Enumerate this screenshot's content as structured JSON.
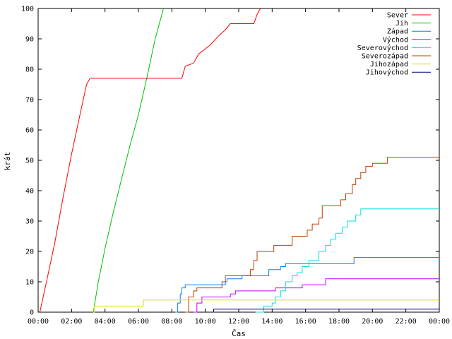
{
  "chart_data": {
    "type": "line",
    "xlabel": "Čas",
    "ylabel": "krát",
    "xlim": [
      0,
      24
    ],
    "ylim": [
      0,
      100
    ],
    "x_ticks": [
      {
        "v": 0,
        "label": "00:00"
      },
      {
        "v": 2,
        "label": "02:00"
      },
      {
        "v": 4,
        "label": "04:00"
      },
      {
        "v": 6,
        "label": "06:00"
      },
      {
        "v": 8,
        "label": "08:00"
      },
      {
        "v": 10,
        "label": "10:00"
      },
      {
        "v": 12,
        "label": "12:00"
      },
      {
        "v": 14,
        "label": "14:00"
      },
      {
        "v": 16,
        "label": "16:00"
      },
      {
        "v": 18,
        "label": "18:00"
      },
      {
        "v": 20,
        "label": "20:00"
      },
      {
        "v": 22,
        "label": "22:00"
      },
      {
        "v": 24,
        "label": "00:00"
      }
    ],
    "y_ticks": [
      0,
      10,
      20,
      30,
      40,
      50,
      60,
      70,
      80,
      90,
      100
    ],
    "legend_position": "top-right",
    "grid": false,
    "series": [
      {
        "name": "Sever",
        "color": "#ff0000",
        "step": false,
        "points": [
          [
            0.1,
            0
          ],
          [
            0.5,
            10
          ],
          [
            1,
            23
          ],
          [
            1.5,
            38
          ],
          [
            2,
            52
          ],
          [
            2.5,
            65
          ],
          [
            2.9,
            75
          ],
          [
            3.1,
            77
          ],
          [
            8.6,
            77
          ],
          [
            8.8,
            81
          ],
          [
            9.3,
            82
          ],
          [
            9.6,
            85
          ],
          [
            10.3,
            88
          ],
          [
            10.8,
            91
          ],
          [
            11.2,
            93
          ],
          [
            11.5,
            95
          ],
          [
            12.9,
            95
          ],
          [
            13.1,
            98
          ],
          [
            13.3,
            100
          ]
        ]
      },
      {
        "name": "Jih",
        "color": "#00c000",
        "step": false,
        "points": [
          [
            3.3,
            0
          ],
          [
            3.6,
            10
          ],
          [
            4.0,
            21
          ],
          [
            4.5,
            33
          ],
          [
            5.0,
            44
          ],
          [
            5.5,
            55
          ],
          [
            6.0,
            65
          ],
          [
            6.5,
            77
          ],
          [
            7.0,
            90
          ],
          [
            7.5,
            100
          ]
        ]
      },
      {
        "name": "Západ",
        "color": "#0080ff",
        "step": true,
        "points": [
          [
            8.2,
            0
          ],
          [
            8.35,
            3
          ],
          [
            8.5,
            6
          ],
          [
            8.6,
            8
          ],
          [
            8.8,
            9
          ],
          [
            11.1,
            9
          ],
          [
            11.2,
            10
          ],
          [
            11.3,
            11
          ],
          [
            12.2,
            12
          ],
          [
            13.6,
            12
          ],
          [
            13.8,
            14
          ],
          [
            14.5,
            15
          ],
          [
            14.8,
            16
          ],
          [
            18.8,
            16
          ],
          [
            18.9,
            18
          ],
          [
            24,
            18
          ]
        ]
      },
      {
        "name": "Východ",
        "color": "#c000ff",
        "step": true,
        "points": [
          [
            9.3,
            0
          ],
          [
            9.5,
            3
          ],
          [
            9.8,
            5
          ],
          [
            11.2,
            5
          ],
          [
            11.5,
            6
          ],
          [
            11.8,
            7
          ],
          [
            13.8,
            7
          ],
          [
            14.2,
            8
          ],
          [
            15.5,
            8
          ],
          [
            15.8,
            9
          ],
          [
            17.0,
            9
          ],
          [
            17.2,
            11
          ],
          [
            24,
            11
          ]
        ]
      },
      {
        "name": "Severovýchod",
        "color": "#00e0e0",
        "step": true,
        "points": [
          [
            13.0,
            0
          ],
          [
            13.5,
            2
          ],
          [
            14.0,
            3
          ],
          [
            14.2,
            5
          ],
          [
            14.5,
            7
          ],
          [
            14.8,
            10
          ],
          [
            15.2,
            12
          ],
          [
            15.5,
            13
          ],
          [
            15.8,
            15
          ],
          [
            16.2,
            17
          ],
          [
            16.8,
            20
          ],
          [
            17.2,
            22
          ],
          [
            17.5,
            24
          ],
          [
            17.8,
            26
          ],
          [
            18.2,
            28
          ],
          [
            18.5,
            30
          ],
          [
            19.0,
            32
          ],
          [
            19.3,
            34
          ],
          [
            24,
            34
          ]
        ]
      },
      {
        "name": "Severozápad",
        "color": "#c04000",
        "step": true,
        "points": [
          [
            8.8,
            0
          ],
          [
            9.0,
            5
          ],
          [
            9.3,
            7
          ],
          [
            9.5,
            8
          ],
          [
            10.9,
            8
          ],
          [
            11.0,
            10
          ],
          [
            11.2,
            12
          ],
          [
            12.5,
            12
          ],
          [
            12.7,
            14
          ],
          [
            12.9,
            17
          ],
          [
            13.1,
            20
          ],
          [
            13.9,
            20
          ],
          [
            14.1,
            22
          ],
          [
            15.0,
            22
          ],
          [
            15.2,
            25
          ],
          [
            15.9,
            25
          ],
          [
            16.1,
            27
          ],
          [
            16.4,
            29
          ],
          [
            16.8,
            31
          ],
          [
            17.0,
            35
          ],
          [
            17.9,
            35
          ],
          [
            18.1,
            37
          ],
          [
            18.4,
            39
          ],
          [
            18.8,
            42
          ],
          [
            19.0,
            44
          ],
          [
            19.3,
            46
          ],
          [
            19.6,
            48
          ],
          [
            20.0,
            49
          ],
          [
            20.7,
            49
          ],
          [
            20.9,
            51
          ],
          [
            24,
            51
          ]
        ]
      },
      {
        "name": "Jihozápad",
        "color": "#e0e000",
        "step": true,
        "points": [
          [
            3.3,
            0
          ],
          [
            3.35,
            2
          ],
          [
            6.2,
            2
          ],
          [
            6.3,
            4
          ],
          [
            24,
            4
          ]
        ]
      },
      {
        "name": "Jihovýchod",
        "color": "#000080",
        "step": true,
        "points": [
          [
            10.4,
            0
          ],
          [
            10.5,
            1
          ],
          [
            24,
            1
          ]
        ]
      }
    ]
  }
}
